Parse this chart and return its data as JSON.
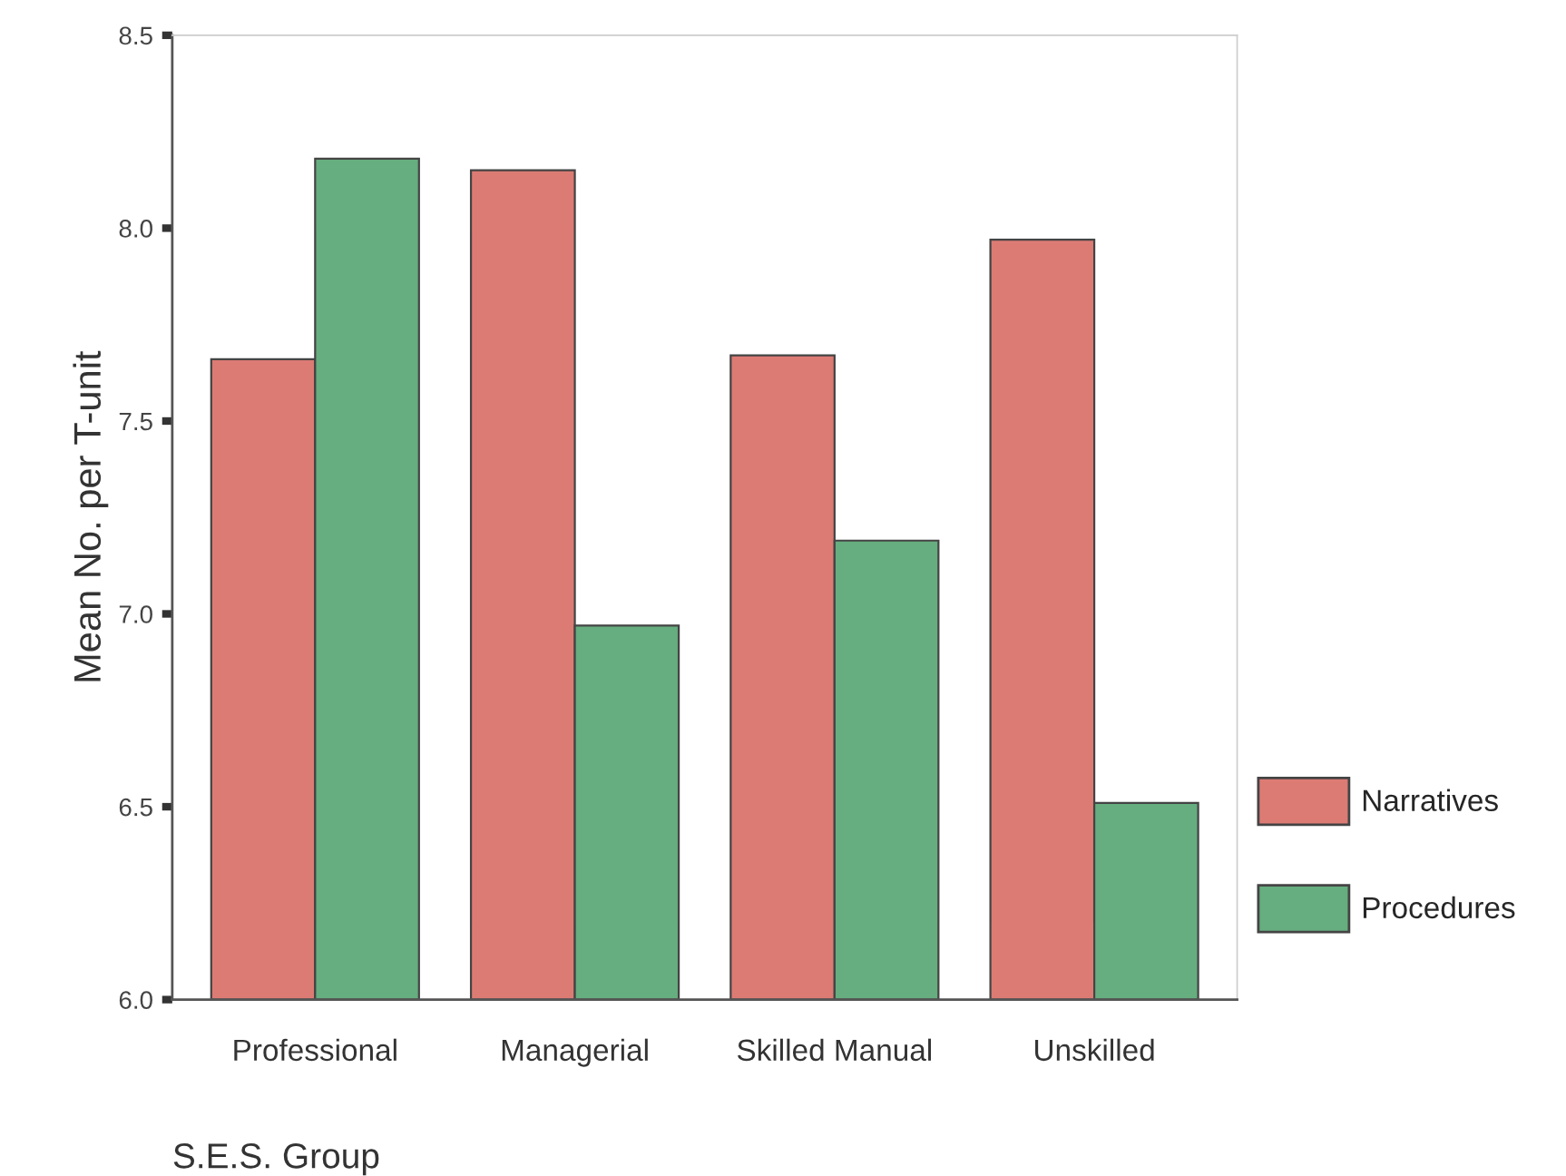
{
  "chart_data": {
    "type": "bar",
    "xlabel": "S.E.S. Group",
    "ylabel": "Mean No. per T-unit",
    "categories": [
      "Professional",
      "Managerial",
      "Skilled Manual",
      "Unskilled"
    ],
    "series": [
      {
        "name": "Narratives",
        "color": "#dc7b74",
        "values": [
          7.66,
          8.15,
          7.67,
          7.97
        ]
      },
      {
        "name": "Procedures",
        "color": "#66ad7f",
        "values": [
          8.18,
          6.97,
          7.19,
          6.51
        ]
      }
    ],
    "ylim": [
      6.0,
      8.5
    ],
    "yticks": [
      {
        "value": 6.0,
        "label": "6.0"
      },
      {
        "value": 6.5,
        "label": "6.5"
      },
      {
        "value": 7.0,
        "label": "7.0"
      },
      {
        "value": 7.5,
        "label": "7.5"
      },
      {
        "value": 8.0,
        "label": "8.0"
      },
      {
        "value": 8.5,
        "label": "8.5"
      }
    ],
    "grid": false,
    "legend": "right"
  }
}
